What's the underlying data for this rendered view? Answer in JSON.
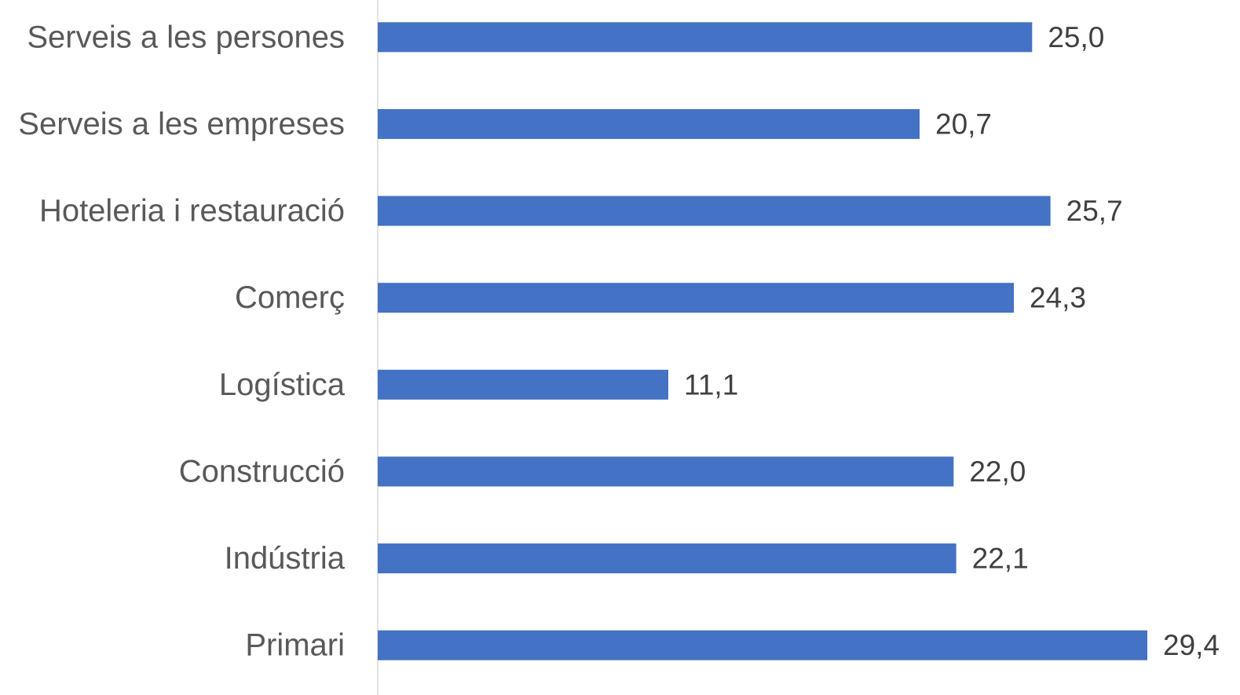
{
  "chart_data": {
    "type": "bar",
    "orientation": "horizontal",
    "categories": [
      "Serveis a les persones",
      "Serveis a les empreses",
      "Hoteleria i restauració",
      "Comerç",
      "Logística",
      "Construcció",
      "Indústria",
      "Primari"
    ],
    "values": [
      25.0,
      20.7,
      25.7,
      24.3,
      11.1,
      22.0,
      22.1,
      29.4
    ],
    "value_labels": [
      "25,0",
      "20,7",
      "25,7",
      "24,3",
      "11,1",
      "22,0",
      "22,1",
      "29,4"
    ],
    "title": "",
    "xlabel": "",
    "ylabel": "",
    "xlim": [
      0,
      29.4
    ],
    "grid": false,
    "legend": "none",
    "bar_color": "#4472C4",
    "axis_color": "#D9D9D9"
  }
}
